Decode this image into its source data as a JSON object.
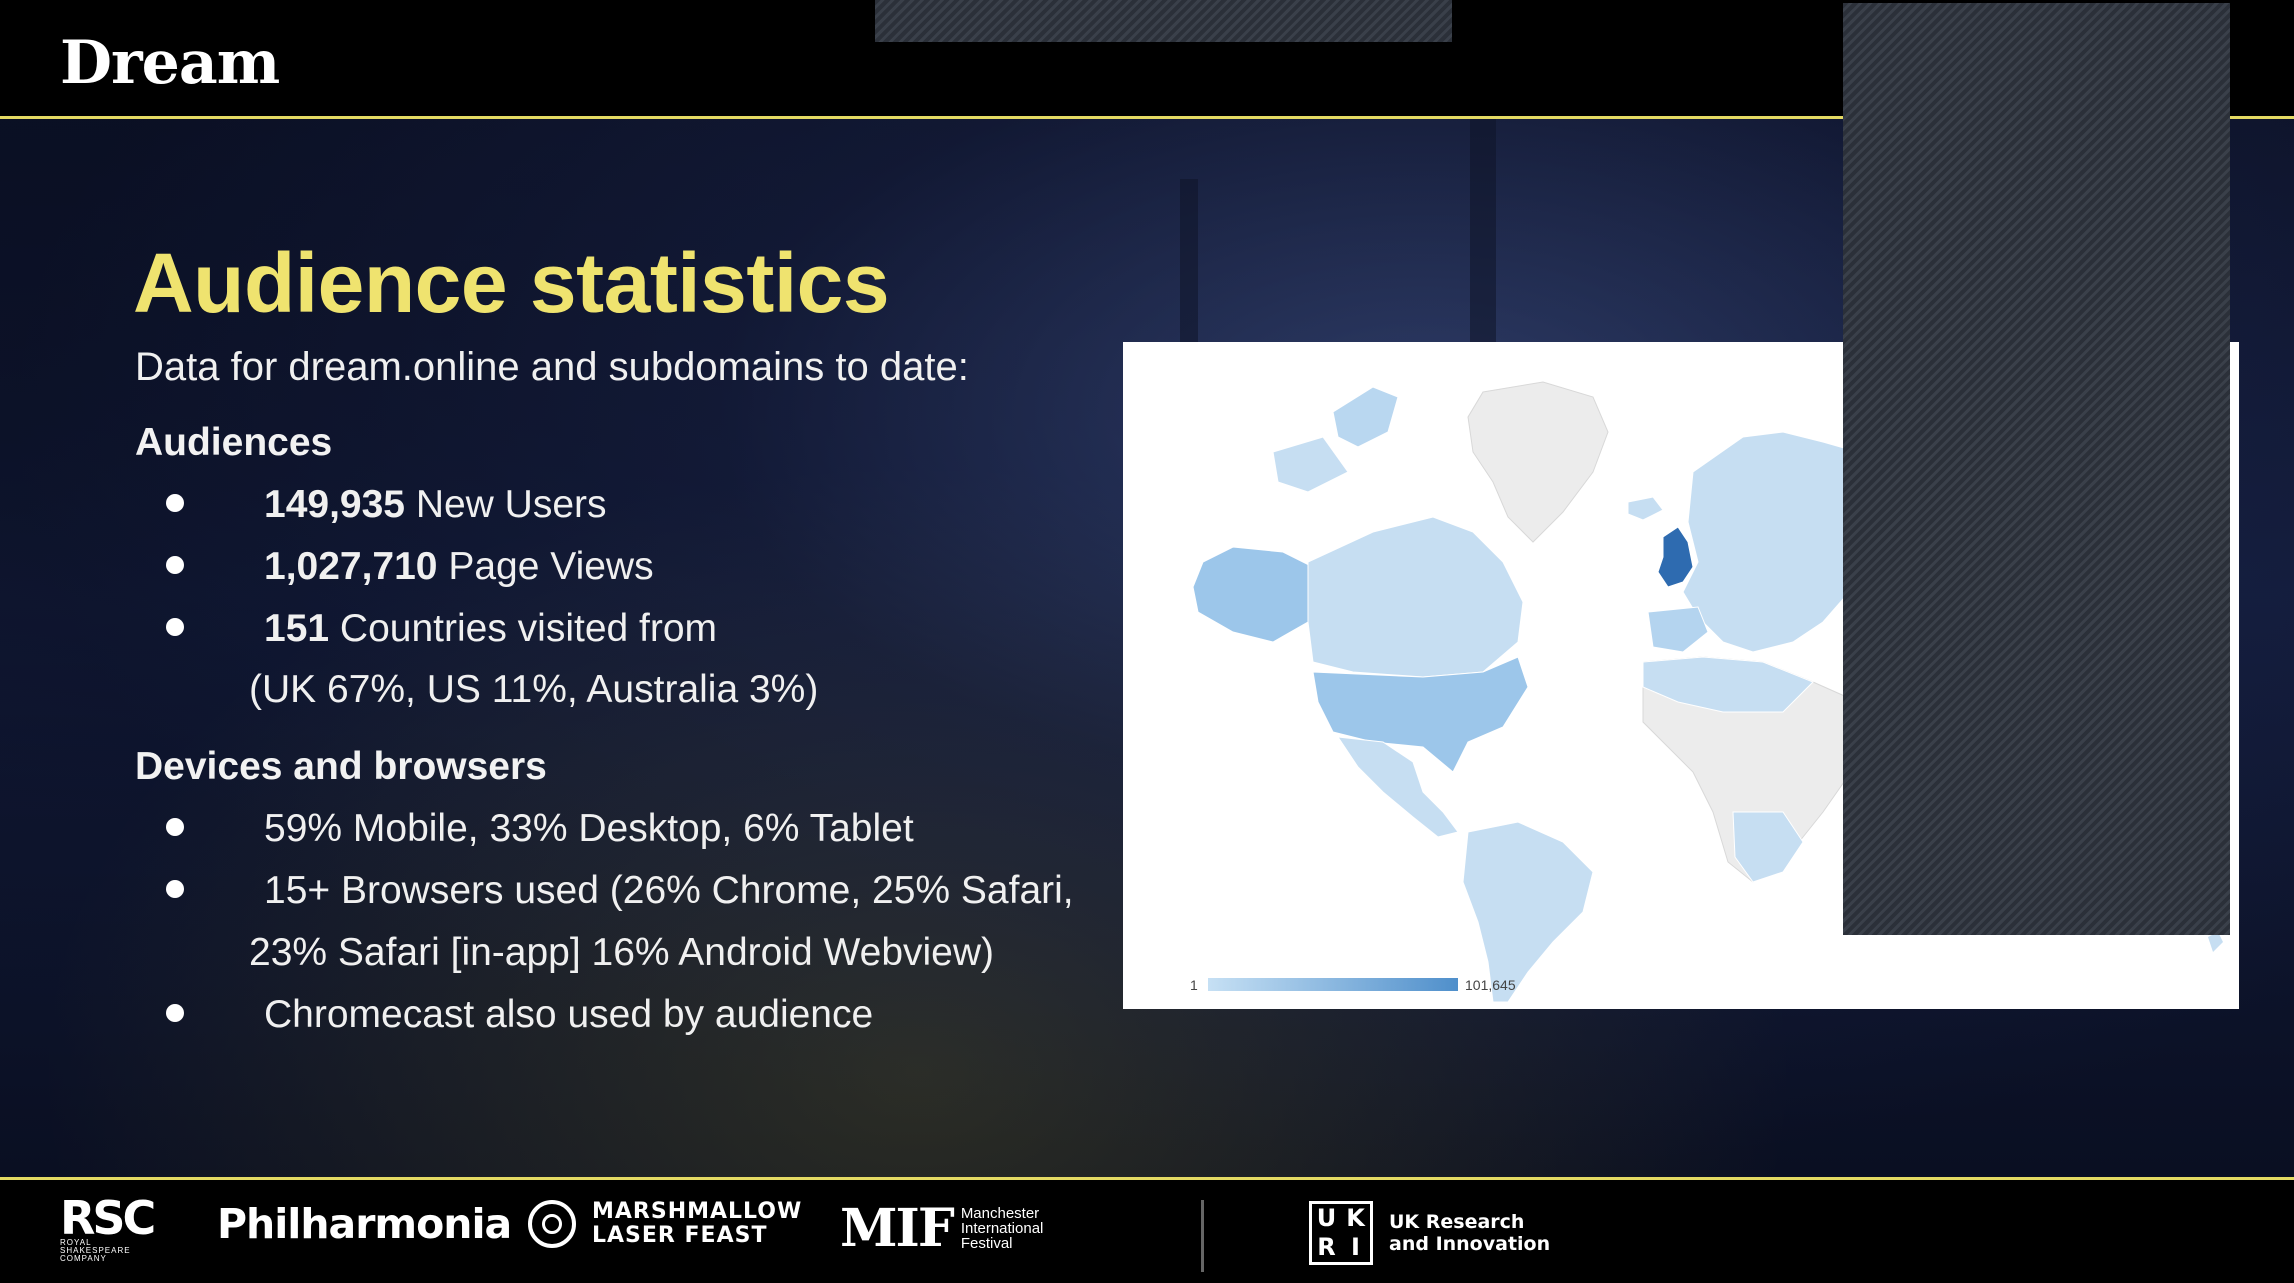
{
  "header": {
    "brand": "Dream"
  },
  "slide": {
    "title": "Audience statistics",
    "subtitle": "Data for dream.online and subdomains to date:",
    "audiences": {
      "heading": "Audiences",
      "items": [
        {
          "value": "149,935",
          "label": " New Users"
        },
        {
          "value": "1,027,710",
          "label": " Page Views"
        },
        {
          "value": "151",
          "label": " Countries visited from",
          "continuation": "(UK 67%, US 11%, Australia 3%)"
        }
      ]
    },
    "devices": {
      "heading": "Devices and browsers",
      "items": [
        {
          "text": "59% Mobile, 33% Desktop, 6% Tablet"
        },
        {
          "text": "15+ Browsers used (26% Chrome, 25% Safari,",
          "continuation": "23% Safari [in-app] 16% Android Webview)"
        },
        {
          "text": "Chromecast also used by audience"
        }
      ]
    }
  },
  "map": {
    "legend_min": "1",
    "legend_max": "101,645",
    "colors": {
      "land_low": "#c6def2",
      "land_mid": "#9cc6ea",
      "land_high": "#2e6bb0",
      "no_data": "#ececec",
      "legend_start": "#c6e0f4",
      "legend_end": "#4f8fcb"
    }
  },
  "footer": {
    "rsc": {
      "mark": "RSC",
      "small": [
        "ROYAL",
        "SHAKESPEARE",
        "COMPANY"
      ]
    },
    "philharmonia": "Philharmonia",
    "marshmallow": [
      "MARSHMALLOW",
      "LASER FEAST"
    ],
    "mif": {
      "mark": "MIF",
      "words": [
        "Manchester",
        "International",
        "Festival"
      ]
    },
    "ukri": {
      "mark": [
        "U",
        "K",
        "R",
        "I"
      ],
      "words": [
        "UK Research",
        "and Innovation"
      ]
    }
  }
}
